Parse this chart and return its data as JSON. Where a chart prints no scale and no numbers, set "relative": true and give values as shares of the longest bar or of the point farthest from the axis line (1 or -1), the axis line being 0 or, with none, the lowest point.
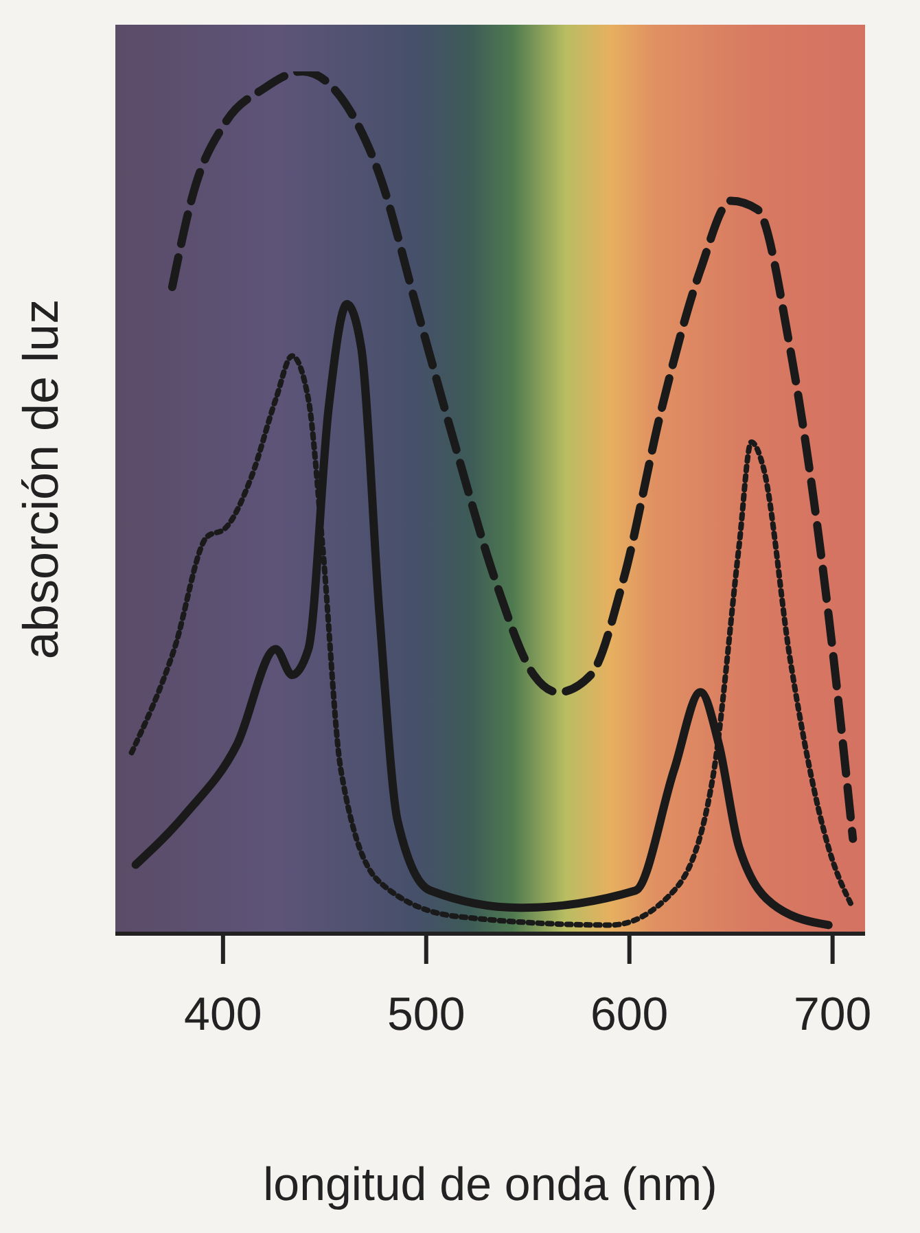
{
  "chart_data": {
    "type": "line",
    "relative": true,
    "xlabel": "longitud de onda (nm)",
    "ylabel": "absorción de luz",
    "xlim": [
      347,
      716
    ],
    "xticks": [
      400,
      500,
      600,
      700
    ],
    "marker": "none",
    "series": [
      {
        "color": "#1a1a1a",
        "line_style": "dashed",
        "x": [
          375,
          385.5,
          401,
          420,
          439,
          458,
          477,
          496,
          515,
          534,
          553,
          565,
          581,
          597,
          616,
          635,
          650,
          663,
          679,
          698,
          710
        ],
        "values": [
          0.75,
          0.86,
          0.94,
          0.98,
          1.0,
          0.97,
          0.88,
          0.72,
          0.56,
          0.41,
          0.3,
          0.28,
          0.3,
          0.41,
          0.61,
          0.77,
          0.85,
          0.84,
          0.68,
          0.37,
          0.11
        ]
      },
      {
        "color": "#1a1a1a",
        "line_style": "solid",
        "x": [
          357,
          382,
          407,
          426,
          434,
          442,
          452,
          461,
          468,
          477,
          486,
          502,
          546,
          603,
          622,
          635,
          644,
          654,
          673,
          698
        ],
        "values": [
          0.08,
          0.14,
          0.22,
          0.33,
          0.3,
          0.33,
          0.61,
          0.73,
          0.68,
          0.37,
          0.13,
          0.05,
          0.03,
          0.05,
          0.19,
          0.28,
          0.22,
          0.1,
          0.03,
          0.01
        ]
      },
      {
        "color": "#1a1a1a",
        "line_style": "dotted",
        "x": [
          355,
          376,
          392,
          401,
          414,
          426,
          434,
          442,
          449,
          458,
          477,
          515,
          591,
          622,
          641,
          654,
          660,
          666,
          679,
          698,
          710
        ],
        "values": [
          0.21,
          0.33,
          0.46,
          0.47,
          0.53,
          0.62,
          0.67,
          0.62,
          0.45,
          0.19,
          0.06,
          0.02,
          0.01,
          0.05,
          0.18,
          0.45,
          0.57,
          0.54,
          0.32,
          0.1,
          0.03
        ]
      }
    ]
  }
}
